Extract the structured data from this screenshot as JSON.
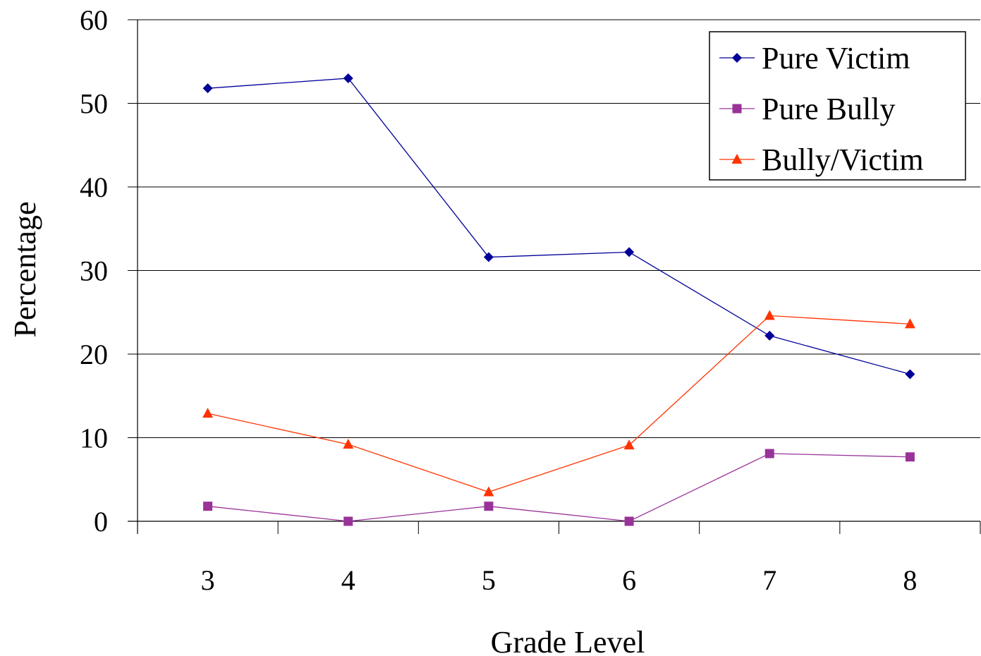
{
  "chart_data": {
    "type": "line",
    "categories": [
      "3",
      "4",
      "5",
      "6",
      "7",
      "8"
    ],
    "xlabel": "Grade Level",
    "ylabel": "Percentage",
    "ylim": [
      0,
      60
    ],
    "yticks": [
      "0",
      "10",
      "20",
      "30",
      "40",
      "50",
      "60"
    ],
    "grid": true,
    "legend_position": "top-right",
    "series": [
      {
        "name": "Pure Victim",
        "values": [
          51.8,
          53.0,
          31.6,
          32.2,
          22.2,
          17.6
        ],
        "color": "#000099",
        "marker": "diamond"
      },
      {
        "name": "Pure Bully",
        "values": [
          1.8,
          0.0,
          1.8,
          0.0,
          8.1,
          7.7
        ],
        "color": "#993399",
        "marker": "square"
      },
      {
        "name": "Bully/Victim",
        "values": [
          12.9,
          9.2,
          3.5,
          9.1,
          24.6,
          23.6
        ],
        "color": "#ff3300",
        "marker": "triangle"
      }
    ]
  }
}
